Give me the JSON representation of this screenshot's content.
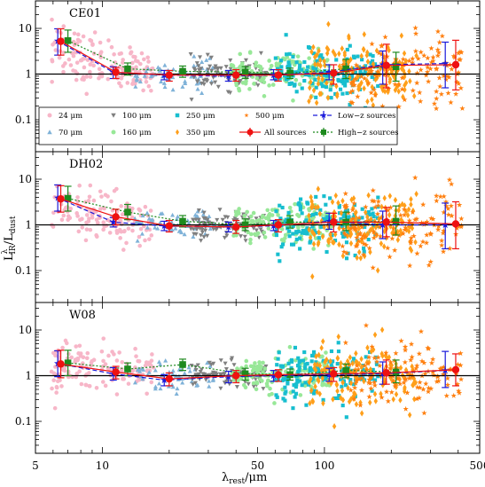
{
  "figure": {
    "xlabel_main": "λ",
    "xlabel_sub": "rest",
    "xlabel_unit": "/μm",
    "ylabel_main": "L",
    "ylabel_sup": "λ",
    "ylabel_sub": "IR",
    "ylabel_den": "/L",
    "ylabel_den_sub": "dust"
  },
  "chart_data": {
    "type": "scatter",
    "x_scale": "log",
    "y_scale": "log",
    "xlim": [
      5,
      500
    ],
    "ylim": [
      0.02,
      40
    ],
    "x_ticks": [
      5,
      10,
      50,
      100,
      500
    ],
    "x_tick_labels": [
      "5",
      "10",
      "50",
      "100",
      "500"
    ],
    "y_ticks": [
      0.1,
      1,
      10
    ],
    "y_tick_labels": [
      "0.1",
      "1",
      "10"
    ],
    "reference_line_y": 1,
    "legend": {
      "placement": "lower-left of top panel",
      "entries": [
        {
          "label": "24 μm",
          "marker": "circle",
          "color": "#f7b6c8"
        },
        {
          "label": "100 μm",
          "marker": "triangle-down",
          "color": "#7f7f7f"
        },
        {
          "label": "250 μm",
          "marker": "square",
          "color": "#17becf"
        },
        {
          "label": "500 μm",
          "marker": "star",
          "color": "#ff7f0e"
        },
        {
          "label": "Low−z sources",
          "marker": "errorbar-line",
          "color": "#1a1adb"
        },
        {
          "label": "70 μm",
          "marker": "triangle-up",
          "color": "#7fb2d8"
        },
        {
          "label": "160 μm",
          "marker": "circle",
          "color": "#98e898"
        },
        {
          "label": "350 μm",
          "marker": "diamond",
          "color": "#ff9f1a"
        },
        {
          "label": "All sources",
          "marker": "circle-line",
          "color": "#ee1111"
        },
        {
          "label": "High−z sources",
          "marker": "square-dotted",
          "color": "#1e8a1e"
        }
      ]
    },
    "panels": [
      {
        "label": "CE01",
        "all_sources": {
          "x": [
            6.5,
            11.5,
            20,
            40,
            62,
            110,
            190,
            390
          ],
          "y": [
            5.2,
            1.1,
            0.95,
            0.95,
            0.95,
            1.05,
            1.55,
            1.6
          ],
          "err_lo": [
            2.6,
            0.8,
            0.7,
            0.7,
            0.7,
            0.6,
            0.5,
            0.45
          ],
          "err_hi": [
            9.8,
            1.4,
            1.2,
            1.25,
            1.25,
            1.6,
            4.5,
            5.5
          ]
        },
        "low_z": {
          "x": [
            6.3,
            11.2,
            19,
            37,
            59,
            105,
            183,
            350
          ],
          "y": [
            5.3,
            1.1,
            0.95,
            0.9,
            0.95,
            1.1,
            1.6,
            1.7
          ],
          "err_lo": [
            2.6,
            0.8,
            0.75,
            0.7,
            0.75,
            0.75,
            0.6,
            0.5
          ],
          "err_hi": [
            9.8,
            1.45,
            1.2,
            1.2,
            1.25,
            1.6,
            3.2,
            5.0
          ]
        },
        "high_z": {
          "x": [
            7.0,
            13,
            23,
            44,
            70,
            125,
            210
          ],
          "y": [
            5.4,
            1.3,
            1.15,
            1.1,
            1.05,
            1.3,
            1.45
          ],
          "err_lo": [
            3.0,
            0.95,
            0.85,
            0.8,
            0.8,
            0.8,
            0.7
          ],
          "err_hi": [
            9.2,
            1.75,
            1.5,
            1.45,
            1.35,
            2.1,
            3.0
          ]
        }
      },
      {
        "label": "DH02",
        "all_sources": {
          "x": [
            6.5,
            11.5,
            20,
            40,
            62,
            110,
            190,
            390
          ],
          "y": [
            3.7,
            1.5,
            0.95,
            0.9,
            1.0,
            1.15,
            1.15,
            1.05
          ],
          "err_lo": [
            1.9,
            1.0,
            0.7,
            0.65,
            0.7,
            0.7,
            0.55,
            0.3
          ],
          "err_hi": [
            7.2,
            2.2,
            1.25,
            1.25,
            1.3,
            1.8,
            2.4,
            3.2
          ]
        },
        "low_z": {
          "x": [
            6.3,
            11.2,
            19,
            37,
            59,
            105,
            183,
            350
          ],
          "y": [
            3.9,
            1.15,
            0.95,
            0.9,
            0.95,
            1.2,
            1.0,
            1.0
          ],
          "err_lo": [
            2.0,
            0.9,
            0.75,
            0.7,
            0.75,
            0.8,
            0.5,
            0.3
          ],
          "err_hi": [
            7.5,
            1.45,
            1.2,
            1.15,
            1.25,
            1.8,
            2.0,
            3.0
          ]
        },
        "high_z": {
          "x": [
            7.0,
            13,
            23,
            44,
            70,
            125,
            210
          ],
          "y": [
            3.8,
            1.9,
            1.2,
            1.0,
            1.15,
            1.15,
            1.2
          ],
          "err_lo": [
            2.0,
            1.3,
            0.9,
            0.75,
            0.85,
            0.75,
            0.6
          ],
          "err_hi": [
            7.0,
            2.8,
            1.6,
            1.35,
            1.6,
            1.9,
            2.6
          ]
        }
      },
      {
        "label": "W08",
        "all_sources": {
          "x": [
            6.5,
            11.5,
            20,
            40,
            62,
            110,
            190,
            390
          ],
          "y": [
            1.8,
            1.2,
            0.85,
            1.0,
            1.05,
            1.1,
            1.15,
            1.35
          ],
          "err_lo": [
            0.9,
            0.85,
            0.6,
            0.7,
            0.75,
            0.75,
            0.65,
            0.6
          ],
          "err_hi": [
            3.6,
            1.6,
            1.15,
            1.3,
            1.35,
            1.5,
            2.2,
            3.0
          ]
        },
        "low_z": {
          "x": [
            6.3,
            11.2,
            19,
            37,
            59,
            105,
            183,
            350
          ],
          "y": [
            1.85,
            1.1,
            0.8,
            0.95,
            1.0,
            1.05,
            1.1,
            1.3
          ],
          "err_lo": [
            0.95,
            0.8,
            0.6,
            0.7,
            0.75,
            0.75,
            0.65,
            0.55
          ],
          "err_hi": [
            3.5,
            1.5,
            1.05,
            1.25,
            1.3,
            1.45,
            2.0,
            3.4
          ]
        },
        "high_z": {
          "x": [
            7.0,
            13,
            23,
            44,
            70,
            125,
            210
          ],
          "y": [
            1.9,
            1.4,
            1.75,
            1.1,
            1.05,
            1.3,
            1.2
          ],
          "err_lo": [
            1.0,
            1.0,
            1.3,
            0.8,
            0.8,
            0.9,
            0.7
          ],
          "err_hi": [
            3.6,
            1.9,
            2.3,
            1.45,
            1.4,
            1.8,
            2.2
          ]
        }
      }
    ],
    "scatter_bands": [
      {
        "name": "24 μm",
        "x_range": [
          5.9,
          17
        ],
        "y_center_by_panel": [
          2.2,
          1.8,
          1.2
        ],
        "y_spread": 0.28,
        "count": 140
      },
      {
        "name": "70 μm",
        "x_range": [
          14,
          32
        ],
        "y_center_by_panel": [
          1.0,
          0.95,
          0.95
        ],
        "y_spread": 0.18,
        "count": 55
      },
      {
        "name": "100 μm",
        "x_range": [
          25,
          55
        ],
        "y_center_by_panel": [
          1.0,
          0.95,
          1.0
        ],
        "y_spread": 0.16,
        "count": 90
      },
      {
        "name": "160 μm",
        "x_range": [
          38,
          110
        ],
        "y_center_by_panel": [
          1.0,
          1.0,
          1.0
        ],
        "y_spread": 0.2,
        "count": 140
      },
      {
        "name": "250 μm",
        "x_range": [
          60,
          175
        ],
        "y_center_by_panel": [
          1.0,
          1.0,
          1.05
        ],
        "y_spread": 0.28,
        "count": 150
      },
      {
        "name": "350 μm",
        "x_range": [
          85,
          260
        ],
        "y_center_by_panel": [
          1.05,
          1.0,
          1.1
        ],
        "y_spread": 0.34,
        "count": 150
      },
      {
        "name": "500 μm",
        "x_range": [
          120,
          420
        ],
        "y_center_by_panel": [
          1.1,
          1.0,
          1.15
        ],
        "y_spread": 0.38,
        "count": 130
      }
    ]
  }
}
